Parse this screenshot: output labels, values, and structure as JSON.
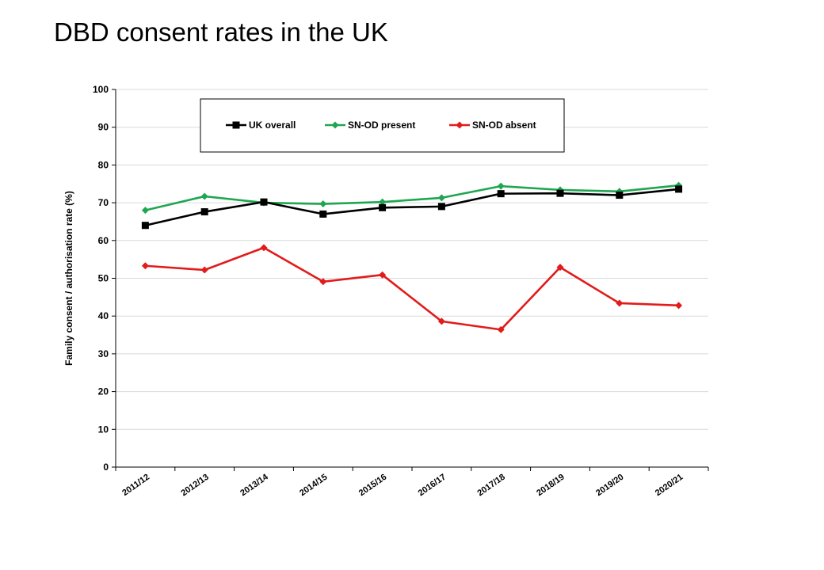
{
  "page": {
    "title": "DBD consent rates in the UK"
  },
  "chart_data": {
    "type": "line",
    "title": "DBD consent rates in the UK",
    "xlabel": "",
    "ylabel": "Family consent / authorisation rate (%)",
    "ylim": [
      0,
      100
    ],
    "yticks": [
      0,
      10,
      20,
      30,
      40,
      50,
      60,
      70,
      80,
      90,
      100
    ],
    "grid": true,
    "legend_position": "top",
    "categories": [
      "2011/12",
      "2012/13",
      "2013/14",
      "2014/15",
      "2015/16",
      "2016/17",
      "2017/18",
      "2018/19",
      "2019/20",
      "2020/21"
    ],
    "series": [
      {
        "name": "UK overall",
        "color": "#000000",
        "marker": "square",
        "values": [
          64,
          67.6,
          70.2,
          67,
          68.7,
          69,
          72.4,
          72.5,
          72,
          73.6
        ]
      },
      {
        "name": "SN-OD present",
        "color": "#1fa650",
        "marker": "diamond",
        "values": [
          68,
          71.7,
          70,
          69.7,
          70.2,
          71.3,
          74.4,
          73.4,
          73,
          74.6
        ]
      },
      {
        "name": "SN-OD absent",
        "color": "#e21b1b",
        "marker": "diamond",
        "values": [
          53.3,
          52.2,
          58.1,
          49.1,
          50.9,
          38.6,
          36.4,
          52.9,
          43.4,
          42.8
        ]
      }
    ]
  }
}
